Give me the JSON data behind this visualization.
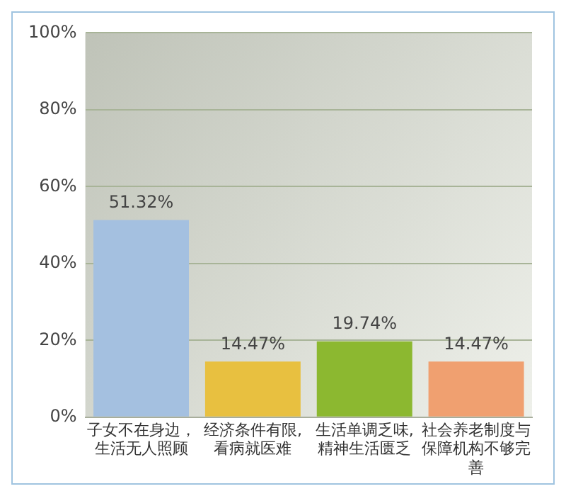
{
  "chart_data": {
    "type": "bar",
    "categories": [
      "子女不在身边，生活无人照顾",
      "经济条件有限, 看病就医难",
      "生活单调乏味, 精神生活匮乏",
      "社会养老制度与保障机构不够完善"
    ],
    "values": [
      51.32,
      14.47,
      19.74,
      14.47
    ],
    "colors": [
      "#a4c0e0",
      "#e8c040",
      "#8cb830",
      "#f0a070"
    ],
    "value_labels": [
      "51.32%",
      "14.47%",
      "19.74%",
      "14.47%"
    ],
    "ylim": [
      0,
      100
    ],
    "yticks": [
      {
        "value": 0,
        "label": "0%"
      },
      {
        "value": 20,
        "label": "20%"
      },
      {
        "value": 40,
        "label": "40%"
      },
      {
        "value": 60,
        "label": "60%"
      },
      {
        "value": 80,
        "label": "80%"
      },
      {
        "value": 100,
        "label": "100%"
      }
    ],
    "grid": "y",
    "legend": false
  }
}
